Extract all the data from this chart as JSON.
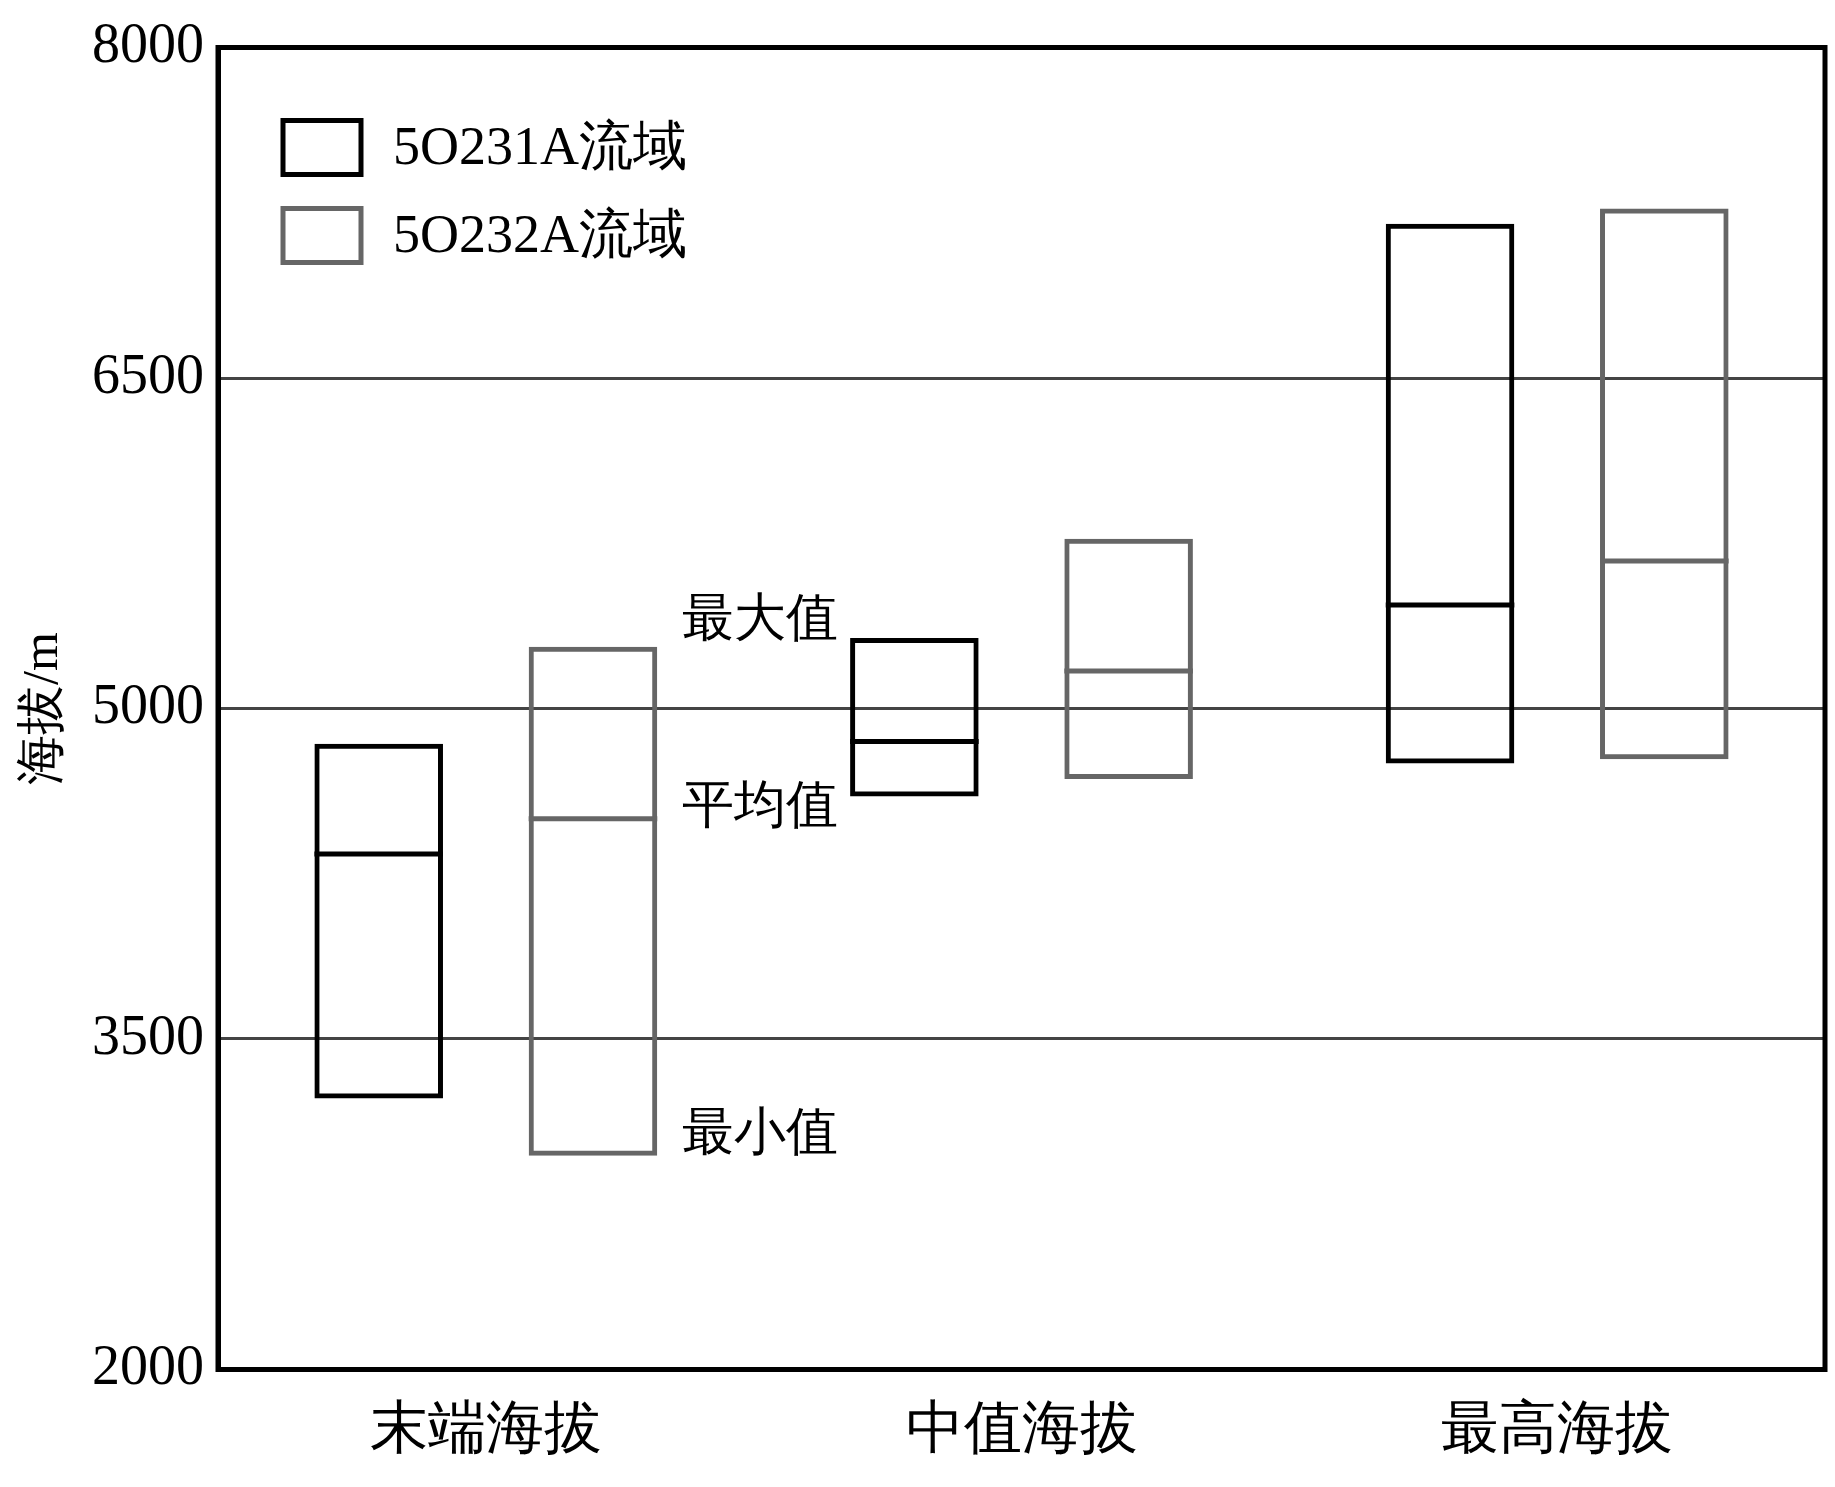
{
  "chart_data": {
    "type": "box",
    "ylabel": "海拔/m",
    "categories": [
      "末端海拔",
      "中值海拔",
      "最高海拔"
    ],
    "ylim": [
      2000,
      8000
    ],
    "yticks": [
      2000,
      3500,
      5000,
      6500,
      8000
    ],
    "grid": "y",
    "legend": "top left",
    "series": [
      {
        "name": "5O231A流域",
        "color": "#000000",
        "boxes": [
          {
            "low": 3230,
            "q1": 3230,
            "median": 4340,
            "q3": 4840,
            "high": 4840
          },
          {
            "low": 4600,
            "q1": 4600,
            "median": 4850,
            "q3": 5320,
            "high": 5320
          },
          {
            "low": 4750,
            "q1": 4750,
            "median": 5470,
            "q3": 7200,
            "high": 7200
          }
        ]
      },
      {
        "name": "5O232A流域",
        "color": "#666666",
        "boxes": [
          {
            "low": 2970,
            "q1": 2970,
            "median": 4500,
            "q3": 5280,
            "high": 5280
          },
          {
            "low": 4680,
            "q1": 4680,
            "median": 5170,
            "q3": 5770,
            "high": 5770
          },
          {
            "low": 4770,
            "q1": 4770,
            "median": 5670,
            "q3": 7270,
            "high": 7270
          }
        ]
      }
    ],
    "annotations": [
      "最大值",
      "平均值",
      "最小值"
    ]
  }
}
